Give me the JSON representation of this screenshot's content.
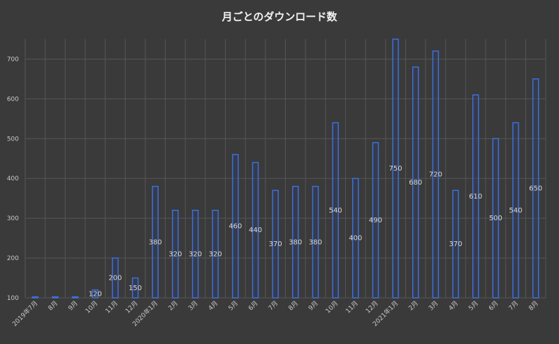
{
  "chart_data": {
    "type": "bar",
    "title": "月ごとのダウンロード数",
    "xlabel": "",
    "ylabel": "",
    "ylim": [
      100,
      750
    ],
    "yticks": [
      100,
      200,
      300,
      400,
      500,
      600,
      700
    ],
    "grid": true,
    "categories": [
      "2019年7月",
      "8月",
      "9月",
      "10月",
      "11月",
      "12月",
      "2020年1月",
      "2月",
      "3月",
      "4月",
      "5月",
      "6月",
      "7月",
      "8月",
      "9月",
      "10月",
      "11月",
      "12月",
      "2021年1月",
      "2月",
      "3月",
      "4月",
      "5月",
      "6月",
      "7月",
      "8月"
    ],
    "values": [
      100,
      100,
      100,
      120,
      200,
      150,
      380,
      320,
      320,
      320,
      460,
      440,
      370,
      380,
      380,
      540,
      400,
      490,
      750,
      680,
      720,
      370,
      610,
      500,
      540,
      650
    ],
    "data_labels": [
      "",
      "",
      "",
      "120",
      "200",
      "150",
      "380",
      "320",
      "320",
      "320",
      "460",
      "440",
      "370",
      "380",
      "380",
      "540",
      "400",
      "490",
      "750",
      "680",
      "720",
      "370",
      "610",
      "500",
      "540",
      "650"
    ],
    "colors": {
      "background": "#3a3a3a",
      "grid": "#565656",
      "bar_fill": "#2f3f66",
      "bar_stroke": "#3f6fd8",
      "text": "#c8c8c8",
      "title": "#f2f2f2"
    }
  }
}
